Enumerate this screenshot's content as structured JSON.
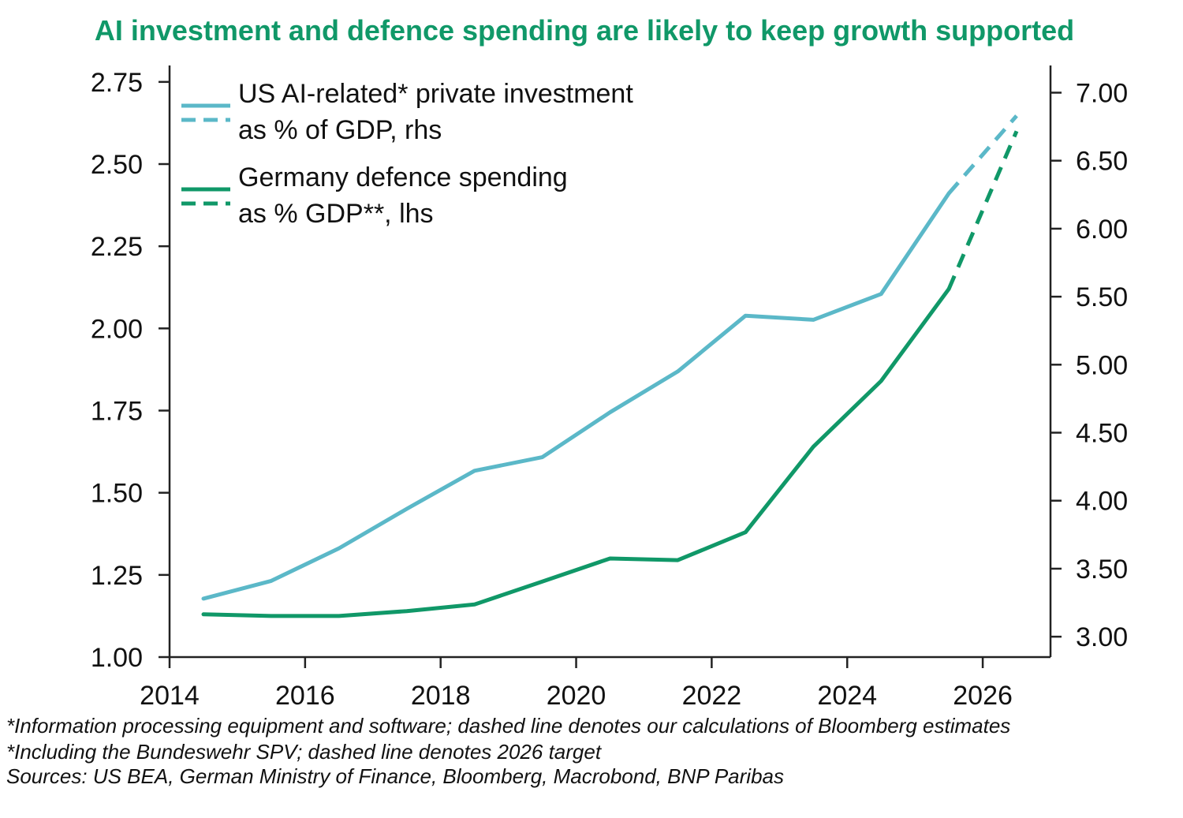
{
  "chart_data": {
    "type": "line",
    "title": "AI investment and defence spending are likely to keep growth supported",
    "x_ticks": [
      "2014",
      "2016",
      "2018",
      "2020",
      "2022",
      "2024",
      "2026"
    ],
    "xlim": [
      2014,
      2027
    ],
    "left_axis": {
      "range": [
        1.0,
        2.8
      ],
      "ticks": [
        "1.00",
        "1.25",
        "1.50",
        "1.75",
        "2.00",
        "2.25",
        "2.50",
        "2.75"
      ]
    },
    "right_axis": {
      "range": [
        2.85,
        7.2
      ],
      "ticks": [
        "3.00",
        "3.50",
        "4.00",
        "4.50",
        "5.00",
        "5.50",
        "6.00",
        "6.50",
        "7.00"
      ]
    },
    "series": [
      {
        "name": "US AI-related* private investment as % of GDP, rhs",
        "legend_lines": [
          "US AI-related* private investment",
          "as % of GDP, rhs"
        ],
        "axis": "right",
        "color": "#5bb8c8",
        "x": [
          2014.5,
          2015.5,
          2016.5,
          2017.5,
          2018.5,
          2019.5,
          2020.5,
          2021.5,
          2022.5,
          2023.5,
          2024.5,
          2025.5
        ],
        "values": [
          3.28,
          3.41,
          3.65,
          3.94,
          4.22,
          4.32,
          4.65,
          4.95,
          5.36,
          5.33,
          5.52,
          6.26
        ],
        "projection": {
          "x": [
            2025.5,
            2026.5
          ],
          "values": [
            6.26,
            6.83
          ]
        }
      },
      {
        "name": "Germany defence spending as % GDP**, lhs",
        "legend_lines": [
          "Germany defence spending",
          "as % GDP**, lhs"
        ],
        "axis": "left",
        "color": "#109868",
        "x": [
          2014.5,
          2015.5,
          2016.5,
          2017.5,
          2018.5,
          2019.5,
          2020.5,
          2021.5,
          2022.5,
          2023.5,
          2024.5,
          2025.5
        ],
        "values": [
          1.13,
          1.125,
          1.125,
          1.14,
          1.16,
          1.23,
          1.3,
          1.295,
          1.38,
          1.64,
          1.84,
          2.12
        ],
        "projection": {
          "x": [
            2025.5,
            2026.5
          ],
          "values": [
            2.12,
            2.6
          ]
        }
      }
    ],
    "legend_position": "top-left"
  },
  "footnotes": {
    "line1": "*Information processing equipment and software; dashed line denotes our calculations of Bloomberg estimates",
    "line2": "*Including the Bundeswehr SPV; dashed line denotes 2026 target",
    "sources": "Sources: US BEA, German Ministry of Finance, Bloomberg, Macrobond, BNP Paribas"
  }
}
